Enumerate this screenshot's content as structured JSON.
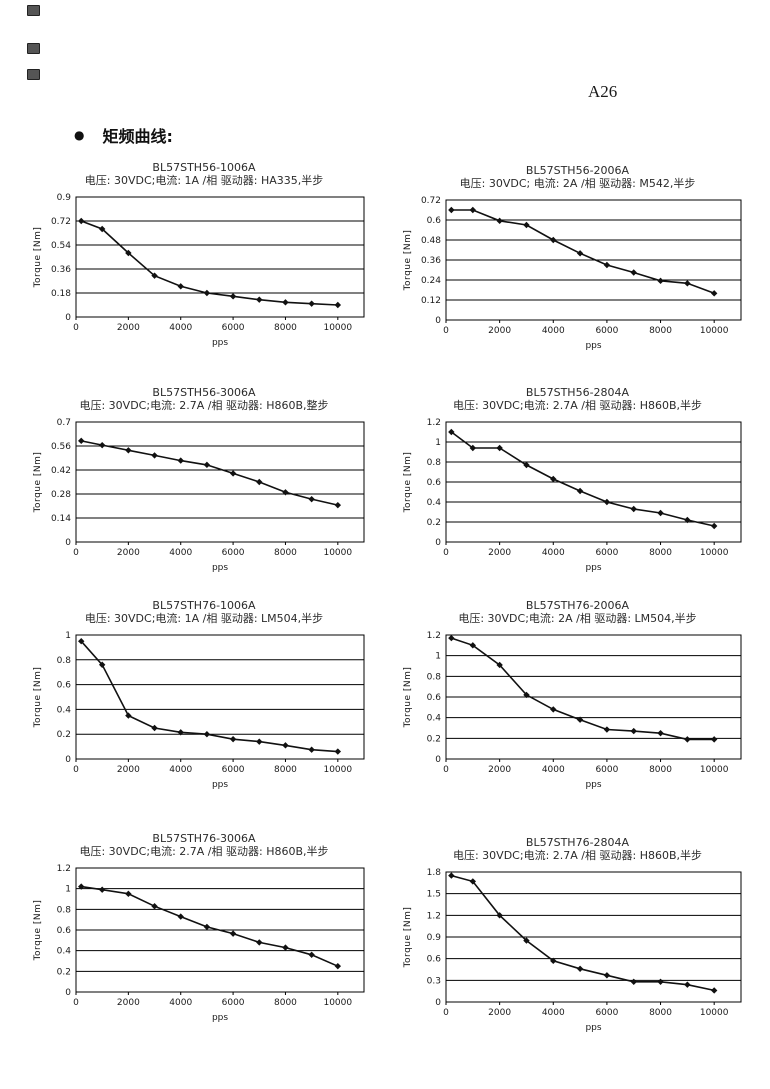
{
  "page": {
    "page_number": "A26",
    "bullet": "●",
    "heading": "矩频曲线:"
  },
  "chart_data": [
    {
      "type": "line",
      "title": "BL57STH56-1006A",
      "subtitle": "电压: 30VDC;电流: 1A /相  驱动器: HA335,半步",
      "xlabel": "pps",
      "ylabel": "Torque  [Nm]",
      "x": [
        200,
        1000,
        2000,
        3000,
        4000,
        5000,
        6000,
        7000,
        8000,
        9000,
        10000
      ],
      "values": [
        0.72,
        0.66,
        0.48,
        0.31,
        0.23,
        0.18,
        0.155,
        0.13,
        0.11,
        0.1,
        0.09
      ],
      "xlim": [
        0,
        11000
      ],
      "xticks": [
        0,
        2000,
        4000,
        6000,
        8000,
        10000
      ],
      "ylim": [
        0,
        0.9
      ],
      "yticks": [
        0,
        0.18,
        0.36,
        0.54,
        0.72,
        0.9
      ],
      "grid": "horizontal",
      "marker": "diamond",
      "line_color": "#111111"
    },
    {
      "type": "line",
      "title": "BL57STH56-2006A",
      "subtitle": "电压: 30VDC; 电流: 2A /相  驱动器: M542,半步",
      "xlabel": "pps",
      "ylabel": "Torque  [Nm]",
      "x": [
        200,
        1000,
        2000,
        3000,
        4000,
        5000,
        6000,
        7000,
        8000,
        9000,
        10000
      ],
      "values": [
        0.66,
        0.66,
        0.595,
        0.57,
        0.48,
        0.4,
        0.33,
        0.285,
        0.235,
        0.22,
        0.16
      ],
      "xlim": [
        0,
        11000
      ],
      "xticks": [
        0,
        2000,
        4000,
        6000,
        8000,
        10000
      ],
      "ylim": [
        0,
        0.72
      ],
      "yticks": [
        0,
        0.12,
        0.24,
        0.36,
        0.48,
        0.6,
        0.72
      ],
      "grid": "horizontal",
      "marker": "diamond",
      "line_color": "#111111"
    },
    {
      "type": "line",
      "title": "BL57STH56-3006A",
      "subtitle": "电压: 30VDC;电流: 2.7A /相  驱动器: H860B,整步",
      "xlabel": "pps",
      "ylabel": "Torque  [Nm]",
      "x": [
        200,
        1000,
        2000,
        3000,
        4000,
        5000,
        6000,
        7000,
        8000,
        9000,
        10000
      ],
      "values": [
        0.59,
        0.565,
        0.535,
        0.505,
        0.475,
        0.45,
        0.4,
        0.35,
        0.29,
        0.25,
        0.215
      ],
      "xlim": [
        0,
        11000
      ],
      "xticks": [
        0,
        2000,
        4000,
        6000,
        8000,
        10000
      ],
      "ylim": [
        0,
        0.7
      ],
      "yticks": [
        0,
        0.14,
        0.28,
        0.42,
        0.56,
        0.7
      ],
      "grid": "horizontal",
      "marker": "diamond",
      "line_color": "#111111"
    },
    {
      "type": "line",
      "title": "BL57STH56-2804A",
      "subtitle": "电压: 30VDC;电流: 2.7A /相  驱动器: H860B,半步",
      "xlabel": "pps",
      "ylabel": "Torque  [Nm]",
      "x": [
        200,
        1000,
        2000,
        3000,
        4000,
        5000,
        6000,
        7000,
        8000,
        9000,
        10000
      ],
      "values": [
        1.1,
        0.94,
        0.94,
        0.77,
        0.63,
        0.51,
        0.4,
        0.33,
        0.29,
        0.22,
        0.16
      ],
      "xlim": [
        0,
        11000
      ],
      "xticks": [
        0,
        2000,
        4000,
        6000,
        8000,
        10000
      ],
      "ylim": [
        0,
        1.2
      ],
      "yticks": [
        0,
        0.2,
        0.4,
        0.6,
        0.8,
        1,
        1.2
      ],
      "grid": "horizontal",
      "marker": "diamond",
      "line_color": "#111111"
    },
    {
      "type": "line",
      "title": "BL57STH76-1006A",
      "subtitle": "电压: 30VDC;电流: 1A /相  驱动器: LM504,半步",
      "xlabel": "pps",
      "ylabel": "Torque  [Nm]",
      "x": [
        200,
        1000,
        2000,
        3000,
        4000,
        5000,
        6000,
        7000,
        8000,
        9000,
        10000
      ],
      "values": [
        0.95,
        0.76,
        0.35,
        0.25,
        0.215,
        0.2,
        0.16,
        0.14,
        0.11,
        0.075,
        0.06
      ],
      "xlim": [
        0,
        11000
      ],
      "xticks": [
        0,
        2000,
        4000,
        6000,
        8000,
        10000
      ],
      "ylim": [
        0,
        1
      ],
      "yticks": [
        0,
        0.2,
        0.4,
        0.6,
        0.8,
        1
      ],
      "grid": "horizontal",
      "marker": "diamond",
      "line_color": "#111111"
    },
    {
      "type": "line",
      "title": "BL57STH76-2006A",
      "subtitle": "电压: 30VDC;电流: 2A /相  驱动器: LM504,半步",
      "xlabel": "pps",
      "ylabel": "Torque  [Nm]",
      "x": [
        200,
        1000,
        2000,
        3000,
        4000,
        5000,
        6000,
        7000,
        8000,
        9000,
        10000
      ],
      "values": [
        1.17,
        1.1,
        0.91,
        0.62,
        0.48,
        0.38,
        0.285,
        0.27,
        0.25,
        0.19,
        0.19
      ],
      "xlim": [
        0,
        11000
      ],
      "xticks": [
        0,
        2000,
        4000,
        6000,
        8000,
        10000
      ],
      "ylim": [
        0,
        1.2
      ],
      "yticks": [
        0,
        0.2,
        0.4,
        0.6,
        0.8,
        1,
        1.2
      ],
      "grid": "horizontal",
      "marker": "diamond",
      "line_color": "#111111"
    },
    {
      "type": "line",
      "title": "BL57STH76-3006A",
      "subtitle": "电压: 30VDC;电流: 2.7A /相  驱动器: H860B,半步",
      "xlabel": "pps",
      "ylabel": "Torque  [Nm]",
      "x": [
        200,
        1000,
        2000,
        3000,
        4000,
        5000,
        6000,
        7000,
        8000,
        9000,
        10000
      ],
      "values": [
        1.02,
        0.99,
        0.95,
        0.83,
        0.73,
        0.63,
        0.565,
        0.48,
        0.43,
        0.36,
        0.25
      ],
      "xlim": [
        0,
        11000
      ],
      "xticks": [
        0,
        2000,
        4000,
        6000,
        8000,
        10000
      ],
      "ylim": [
        0,
        1.2
      ],
      "yticks": [
        0,
        0.2,
        0.4,
        0.6,
        0.8,
        1,
        1.2
      ],
      "grid": "horizontal",
      "marker": "diamond",
      "line_color": "#111111"
    },
    {
      "type": "line",
      "title": "BL57STH76-2804A",
      "subtitle": "电压: 30VDC;电流: 2.7A /相  驱动器: H860B,半步",
      "xlabel": "pps",
      "ylabel": "Torque  [Nm]",
      "x": [
        200,
        1000,
        2000,
        3000,
        4000,
        5000,
        6000,
        7000,
        8000,
        9000,
        10000
      ],
      "values": [
        1.75,
        1.67,
        1.2,
        0.85,
        0.57,
        0.46,
        0.37,
        0.28,
        0.28,
        0.24,
        0.16
      ],
      "xlim": [
        0,
        11000
      ],
      "xticks": [
        0,
        2000,
        4000,
        6000,
        8000,
        10000
      ],
      "ylim": [
        0,
        1.8
      ],
      "yticks": [
        0,
        0.3,
        0.6,
        0.9,
        1.2,
        1.5,
        1.8
      ],
      "grid": "horizontal",
      "marker": "diamond",
      "line_color": "#111111"
    }
  ]
}
